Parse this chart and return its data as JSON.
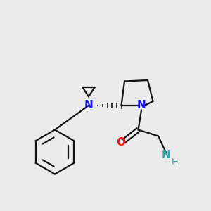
{
  "background_color": "#ebebeb",
  "bond_color": "#111111",
  "N_color": "#1414ff",
  "O_color": "#ff1414",
  "NH2_color": "#2daaaa",
  "figsize": [
    3.0,
    3.0
  ],
  "dpi": 100,
  "xlim": [
    0,
    10
  ],
  "ylim": [
    0,
    10
  ]
}
